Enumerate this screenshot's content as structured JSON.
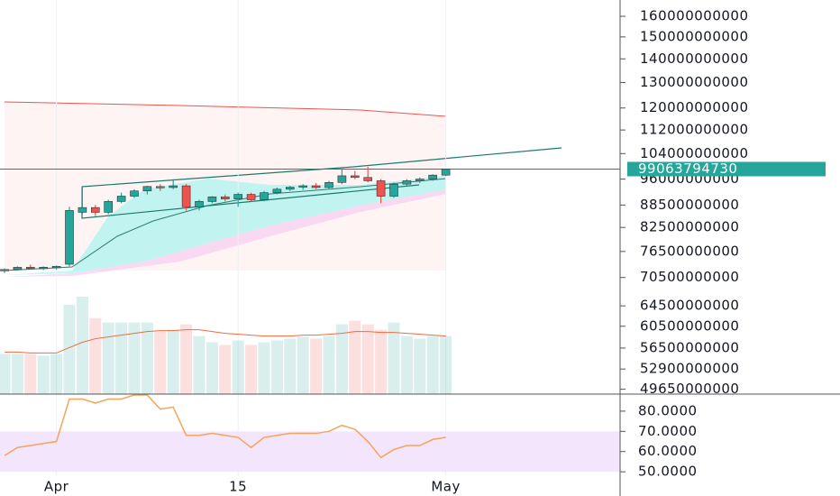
{
  "chart_data": [
    {
      "type": "candlestick",
      "categories": [
        null,
        null,
        null,
        null,
        "Apr",
        null,
        null,
        null,
        null,
        null,
        null,
        null,
        null,
        null,
        null,
        null,
        null,
        null,
        "15",
        null,
        null,
        null,
        null,
        null,
        null,
        null,
        null,
        null,
        null,
        null,
        null,
        null,
        null,
        null,
        "May"
      ],
      "open": [
        72000000000,
        72300000000,
        72800000000,
        72600000000,
        72800000000,
        73500000000,
        86500000000,
        87800000000,
        86500000000,
        89500000000,
        91000000000,
        92500000000,
        93800000000,
        93500000000,
        94000000000,
        88000000000,
        89500000000,
        90800000000,
        90200000000,
        91500000000,
        90000000000,
        92000000000,
        93000000000,
        93600000000,
        94000000000,
        93500000000,
        95000000000,
        97000000000,
        96500000000,
        95500000000,
        91000000000,
        94500000000,
        95500000000,
        96000000000,
        97200000000
      ],
      "high": [
        72500000000,
        73000000000,
        73400000000,
        73000000000,
        73200000000,
        88000000000,
        94000000000,
        88500000000,
        90000000000,
        92000000000,
        93000000000,
        94000000000,
        94500000000,
        96000000000,
        94500000000,
        90000000000,
        91000000000,
        91500000000,
        92000000000,
        92000000000,
        92500000000,
        93500000000,
        94000000000,
        94500000000,
        94800000000,
        95500000000,
        99500000000,
        98500000000,
        99800000000,
        96000000000,
        95000000000,
        96000000000,
        96500000000,
        97500000000,
        99100000000
      ],
      "low": [
        71500000000,
        72000000000,
        72300000000,
        72200000000,
        72300000000,
        73000000000,
        86000000000,
        85500000000,
        86000000000,
        89000000000,
        90500000000,
        91500000000,
        92500000000,
        93000000000,
        87000000000,
        87000000000,
        89000000000,
        89500000000,
        88000000000,
        89500000000,
        89500000000,
        91500000000,
        92500000000,
        92800000000,
        93000000000,
        93000000000,
        94500000000,
        96000000000,
        95000000000,
        89000000000,
        90500000000,
        94000000000,
        94800000000,
        95500000000,
        97000000000
      ],
      "close": [
        72300000000,
        72800000000,
        72600000000,
        72800000000,
        73000000000,
        87000000000,
        87800000000,
        86500000000,
        89500000000,
        91000000000,
        92500000000,
        93800000000,
        93500000000,
        94000000000,
        88000000000,
        89500000000,
        90800000000,
        90200000000,
        91500000000,
        90000000000,
        92000000000,
        93000000000,
        93600000000,
        94000000000,
        93500000000,
        95000000000,
        97000000000,
        96500000000,
        95500000000,
        91000000000,
        94500000000,
        95500000000,
        96000000000,
        97200000000,
        99063794730
      ],
      "up_color": "#26a69a",
      "down_color": "#ef5350",
      "log_scale": true,
      "ylim": [
        48900000000,
        168400000000
      ],
      "yticks": [
        160000000000,
        150000000000,
        140000000000,
        130000000000,
        120000000000,
        112000000000,
        104000000000,
        96000000000,
        88500000000,
        82500000000,
        76500000000,
        70500000000,
        64500000000,
        60500000000,
        56500000000,
        52900000000,
        49650000000
      ],
      "last_price": 99063794730,
      "last_color": "#26a69a",
      "line_color": "#2962ff"
    },
    {
      "type": "bar",
      "values": [
        45,
        45,
        45,
        43,
        45,
        100,
        109,
        85,
        80,
        80,
        80,
        80,
        70,
        72,
        78,
        65,
        58,
        55,
        60,
        55,
        58,
        60,
        62,
        64,
        62,
        65,
        78,
        82,
        78,
        72,
        80,
        65,
        62,
        65,
        65
      ],
      "ma": [
        47,
        47,
        46,
        46,
        46,
        52,
        58,
        62,
        64,
        66,
        68,
        70,
        71,
        71,
        72,
        72,
        70,
        68,
        67,
        66,
        65,
        65,
        65,
        66,
        66,
        67,
        68,
        70,
        70,
        69,
        69,
        68,
        67,
        66,
        65
      ],
      "ma_color": "#ef6c3e",
      "ylim": [
        0,
        110
      ]
    },
    {
      "type": "line",
      "values": [
        58,
        62,
        63,
        64,
        65,
        86,
        86,
        84,
        86,
        86,
        88,
        88,
        81,
        82,
        68,
        68,
        69,
        68,
        67,
        62,
        67,
        68,
        69,
        69,
        69,
        70,
        73,
        71,
        65,
        57,
        61,
        63,
        63,
        66,
        67
      ],
      "color": "#f7a35c",
      "band": [
        50,
        70
      ],
      "band_color": "#f3e5fb",
      "ylim": [
        38,
        88
      ],
      "yticks": [
        {
          "value": 80,
          "label": "80.0000"
        },
        {
          "value": 70,
          "label": "70.0000"
        },
        {
          "value": 60,
          "label": "60.0000"
        },
        {
          "value": 50,
          "label": "50.0000"
        }
      ]
    }
  ]
}
